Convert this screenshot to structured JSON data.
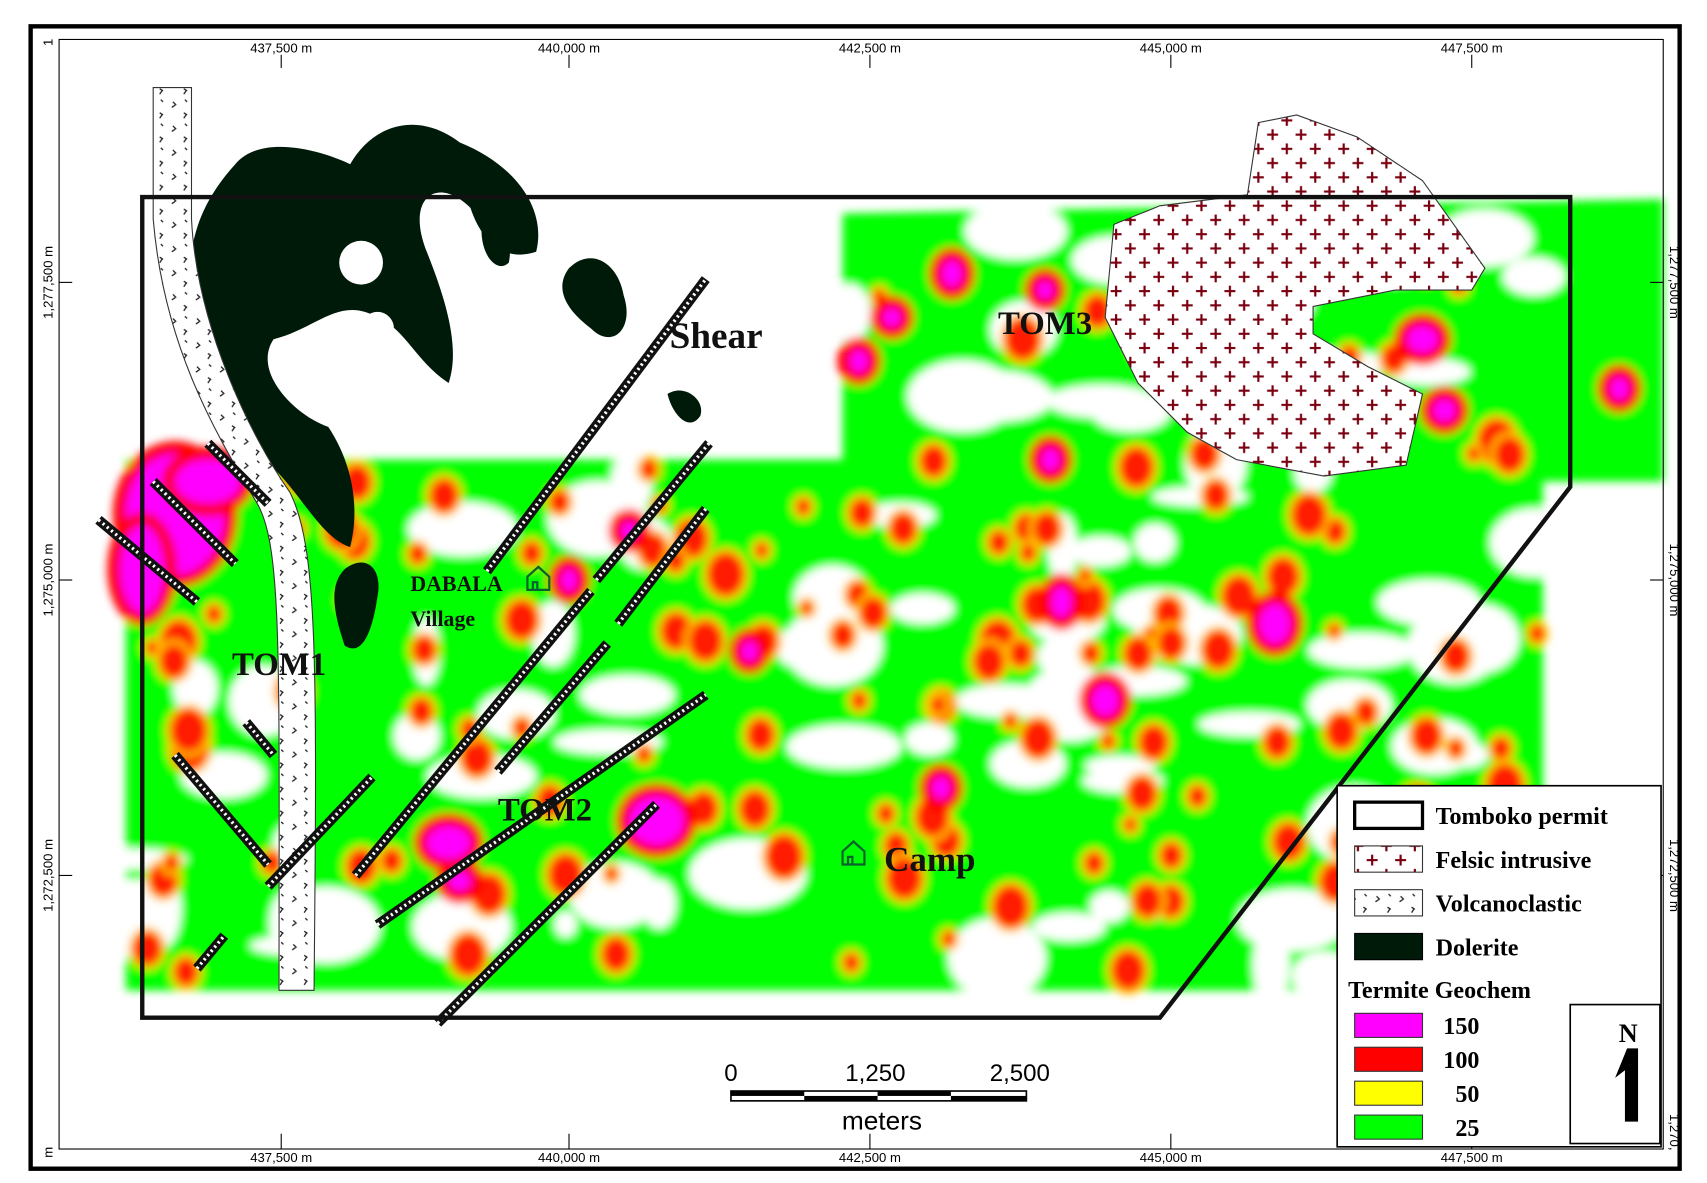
{
  "map": {
    "x_labels": [
      "437,500 m",
      "440,000 m",
      "442,500 m",
      "445,000 m",
      "447,500 m"
    ],
    "y_labels": [
      "1,277,500 m",
      "1,275,000 m",
      "1,272,500 m"
    ],
    "corner_labels": [
      "1",
      "m",
      "1,270,"
    ],
    "zones": [
      "TOM1",
      "TOM2",
      "TOM3"
    ],
    "shear": "Shear",
    "village": [
      "DABALA",
      "Village"
    ],
    "camp": "Camp",
    "legend": {
      "items": [
        "Tomboko permit",
        "Felsic intrusive",
        "Volcanoclastic",
        "Dolerite"
      ],
      "geochem_title": "Termite Geochem",
      "levels": [
        {
          "value": 150,
          "color": "#ff00ff"
        },
        {
          "value": 100,
          "color": "#ff0000"
        },
        {
          "value": 50,
          "color": "#ffff00"
        },
        {
          "value": 25,
          "color": "#00ff00"
        }
      ]
    },
    "scale": {
      "labels": [
        "0",
        "1,250",
        "2,500"
      ],
      "unit": "meters"
    },
    "north": "N"
  }
}
